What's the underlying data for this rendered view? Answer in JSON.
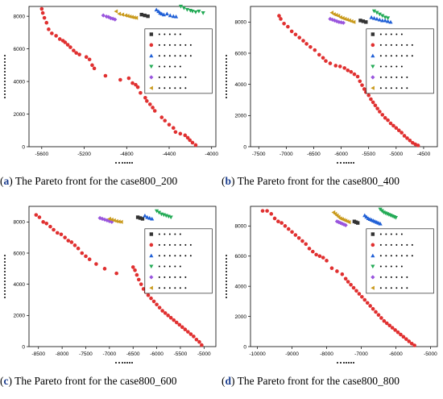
{
  "chart_data": [
    {
      "type": "scatter",
      "panel_label": "a",
      "caption": "The Pareto front for the case800_200",
      "xlim": [
        -5720,
        -3960
      ],
      "xticks": [
        -5600,
        -5200,
        -4800,
        -4400,
        -4000
      ],
      "ylim": [
        0,
        8600
      ],
      "yticks": [
        0,
        2000,
        4000,
        6000,
        8000
      ],
      "legend": "right",
      "series": [
        {
          "marker": "circle",
          "color": "#e03030",
          "x": [
            -5600,
            -5590,
            -5575,
            -5555,
            -5535,
            -5505,
            -5465,
            -5430,
            -5400,
            -5380,
            -5355,
            -5330,
            -5300,
            -5275,
            -5245,
            -5180,
            -5150,
            -5125,
            -5105,
            -5000,
            -4860,
            -4780,
            -4745,
            -4715,
            -4695,
            -4670,
            -4625,
            -4610,
            -4580,
            -4555,
            -4535,
            -4470,
            -4440,
            -4400,
            -4360,
            -4340,
            -4295,
            -4250,
            -4225,
            -4205,
            -4180,
            -4150
          ],
          "y": [
            8450,
            8200,
            7900,
            7600,
            7200,
            6950,
            6800,
            6600,
            6500,
            6400,
            6250,
            6100,
            5900,
            5750,
            5650,
            5500,
            5350,
            5000,
            4800,
            4350,
            4100,
            4200,
            3900,
            3800,
            3650,
            3300,
            3000,
            2800,
            2600,
            2400,
            2200,
            1800,
            1600,
            1350,
            1150,
            900,
            800,
            700,
            550,
            400,
            250,
            100
          ]
        },
        {
          "marker": "square",
          "color": "#333333",
          "x": [
            -4660,
            -4630,
            -4600
          ],
          "y": [
            8100,
            8050,
            8000
          ]
        },
        {
          "marker": "triangle-up",
          "color": "#1f5fd6",
          "x": [
            -4520,
            -4500,
            -4485,
            -4470,
            -4450,
            -4420,
            -4390,
            -4360,
            -4335
          ],
          "y": [
            8400,
            8300,
            8200,
            8150,
            8100,
            8150,
            8050,
            8000,
            7980
          ]
        },
        {
          "marker": "triangle-down",
          "color": "#22aa55",
          "x": [
            -4290,
            -4260,
            -4230,
            -4200,
            -4180,
            -4150,
            -4120,
            -4080
          ],
          "y": [
            8600,
            8500,
            8400,
            8350,
            8300,
            8250,
            8300,
            8200
          ]
        },
        {
          "marker": "diamond",
          "color": "#9955dd",
          "x": [
            -5020,
            -4990,
            -4970,
            -4950,
            -4930,
            -4910
          ],
          "y": [
            8050,
            7980,
            7950,
            7880,
            7850,
            7800
          ]
        },
        {
          "marker": "triangle-left",
          "color": "#c99a1c",
          "x": [
            -4900,
            -4870,
            -4840,
            -4810,
            -4790,
            -4770,
            -4750,
            -4730,
            -4710
          ],
          "y": [
            8300,
            8150,
            8100,
            8050,
            8020,
            7980,
            7950,
            7920,
            7900
          ]
        }
      ]
    },
    {
      "type": "scatter",
      "panel_label": "b",
      "caption": "The Pareto front for the case800_400",
      "xlim": [
        -7650,
        -4250
      ],
      "xticks": [
        -7500,
        -7000,
        -6500,
        -6000,
        -5500,
        -5000,
        -4500
      ],
      "ylim": [
        0,
        9000
      ],
      "yticks": [
        0,
        2000,
        4000,
        6000,
        8000
      ],
      "legend": "right",
      "series": [
        {
          "marker": "circle",
          "color": "#e03030",
          "x": [
            -7130,
            -7100,
            -7040,
            -6970,
            -6900,
            -6830,
            -6760,
            -6690,
            -6630,
            -6560,
            -6480,
            -6400,
            -6330,
            -6280,
            -6200,
            -6100,
            -6020,
            -5940,
            -5880,
            -5820,
            -5760,
            -5700,
            -5660,
            -5620,
            -5580,
            -5550,
            -5500,
            -5460,
            -5420,
            -5380,
            -5340,
            -5300,
            -5250,
            -5200,
            -5150,
            -5100,
            -5050,
            -5000,
            -4950,
            -4900,
            -4850,
            -4800,
            -4750,
            -4700,
            -4650,
            -4600
          ],
          "y": [
            8400,
            8200,
            7900,
            7700,
            7400,
            7200,
            7000,
            6800,
            6600,
            6400,
            6200,
            5900,
            5700,
            5500,
            5350,
            5200,
            5150,
            5050,
            4900,
            4800,
            4650,
            4500,
            4200,
            3950,
            3700,
            3500,
            3300,
            3050,
            2850,
            2650,
            2450,
            2250,
            2050,
            1850,
            1700,
            1500,
            1350,
            1200,
            1050,
            900,
            700,
            550,
            400,
            250,
            150,
            80
          ]
        },
        {
          "marker": "square",
          "color": "#333333",
          "x": [
            -5650,
            -5600,
            -5550
          ],
          "y": [
            8100,
            8050,
            8000
          ]
        },
        {
          "marker": "triangle-up",
          "color": "#1f5fd6",
          "x": [
            -5450,
            -5400,
            -5350,
            -5300,
            -5250,
            -5200,
            -5150,
            -5100
          ],
          "y": [
            8300,
            8250,
            8200,
            8150,
            8100,
            8100,
            8050,
            8000
          ]
        },
        {
          "marker": "triangle-down",
          "color": "#22aa55",
          "x": [
            -5400,
            -5350,
            -5300,
            -5250,
            -5200,
            -5150
          ],
          "y": [
            8700,
            8600,
            8500,
            8400,
            8300,
            8250
          ]
        },
        {
          "marker": "diamond",
          "color": "#9955dd",
          "x": [
            -6200,
            -6160,
            -6120,
            -6080,
            -6040,
            -6000,
            -5960
          ],
          "y": [
            8200,
            8150,
            8100,
            8050,
            8000,
            7980,
            7950
          ]
        },
        {
          "marker": "triangle-left",
          "color": "#c99a1c",
          "x": [
            -6170,
            -6130,
            -6090,
            -6050,
            -6010,
            -5970,
            -5930,
            -5890,
            -5850,
            -5810,
            -5770
          ],
          "y": [
            8600,
            8500,
            8450,
            8400,
            8300,
            8250,
            8200,
            8150,
            8100,
            8050,
            8000
          ]
        }
      ]
    },
    {
      "type": "scatter",
      "panel_label": "c",
      "caption": "The Pareto front for the case800_600",
      "xlim": [
        -8700,
        -4750
      ],
      "xticks": [
        -8500,
        -8000,
        -7500,
        -7000,
        -6500,
        -6000,
        -5500,
        -5000
      ],
      "ylim": [
        0,
        9000
      ],
      "yticks": [
        0,
        2000,
        4000,
        6000,
        8000
      ],
      "legend": "right",
      "series": [
        {
          "marker": "circle",
          "color": "#e03030",
          "x": [
            -8550,
            -8480,
            -8400,
            -8330,
            -8250,
            -8180,
            -8100,
            -8020,
            -7940,
            -7870,
            -7800,
            -7730,
            -7660,
            -7580,
            -7500,
            -7420,
            -7280,
            -7100,
            -6850,
            -6500,
            -6460,
            -6420,
            -6380,
            -6330,
            -6280,
            -6230,
            -6180,
            -6120,
            -6060,
            -6000,
            -5940,
            -5880,
            -5820,
            -5760,
            -5700,
            -5640,
            -5580,
            -5520,
            -5460,
            -5400,
            -5340,
            -5280,
            -5220,
            -5160,
            -5100,
            -5050
          ],
          "y": [
            8450,
            8300,
            8000,
            7900,
            7700,
            7500,
            7300,
            7200,
            7000,
            6800,
            6700,
            6500,
            6300,
            6000,
            5800,
            5600,
            5300,
            5000,
            4700,
            5100,
            4900,
            4600,
            4300,
            4000,
            3700,
            3500,
            3300,
            3100,
            2900,
            2700,
            2500,
            2300,
            2150,
            2000,
            1850,
            1700,
            1550,
            1400,
            1250,
            1100,
            950,
            800,
            650,
            450,
            300,
            100
          ]
        },
        {
          "marker": "square",
          "color": "#333333",
          "x": [
            -6400,
            -6350,
            -6300
          ],
          "y": [
            8300,
            8250,
            8200
          ]
        },
        {
          "marker": "triangle-up",
          "color": "#1f5fd6",
          "x": [
            -6250,
            -6200,
            -6150,
            -6100
          ],
          "y": [
            8400,
            8300,
            8250,
            8200
          ]
        },
        {
          "marker": "triangle-down",
          "color": "#22aa55",
          "x": [
            -6000,
            -5950,
            -5900,
            -5850,
            -5800,
            -5750,
            -5700
          ],
          "y": [
            8700,
            8600,
            8500,
            8450,
            8400,
            8350,
            8300
          ]
        },
        {
          "marker": "diamond",
          "color": "#9955dd",
          "x": [
            -7200,
            -7150,
            -7100,
            -7050,
            -7000,
            -6950
          ],
          "y": [
            8250,
            8200,
            8150,
            8100,
            8050,
            8000
          ]
        },
        {
          "marker": "triangle-left",
          "color": "#c99a1c",
          "x": [
            -7000,
            -6950,
            -6900,
            -6850,
            -6800,
            -6750
          ],
          "y": [
            8200,
            8150,
            8100,
            8050,
            8020,
            8000
          ]
        }
      ]
    },
    {
      "type": "scatter",
      "panel_label": "d",
      "caption": "The Pareto front for the case800_800",
      "xlim": [
        -10200,
        -4800
      ],
      "xticks": [
        -10000,
        -9000,
        -8000,
        -7000,
        -6000,
        -5000
      ],
      "ylim": [
        0,
        9300
      ],
      "yticks": [
        0,
        2000,
        4000,
        6000,
        8000
      ],
      "legend": "right",
      "series": [
        {
          "marker": "circle",
          "color": "#e03030",
          "x": [
            -9850,
            -9720,
            -9600,
            -9500,
            -9400,
            -9300,
            -9200,
            -9100,
            -9000,
            -8900,
            -8800,
            -8700,
            -8600,
            -8500,
            -8400,
            -8300,
            -8200,
            -8100,
            -8000,
            -7850,
            -7700,
            -7550,
            -7450,
            -7380,
            -7300,
            -7220,
            -7140,
            -7060,
            -6980,
            -6900,
            -6820,
            -6740,
            -6660,
            -6580,
            -6500,
            -6420,
            -6340,
            -6260,
            -6180,
            -6100,
            -6020,
            -5940,
            -5860,
            -5780,
            -5700,
            -5620,
            -5540,
            -5460
          ],
          "y": [
            9000,
            9000,
            8800,
            8500,
            8300,
            8200,
            8000,
            7800,
            7600,
            7400,
            7200,
            7000,
            6800,
            6500,
            6300,
            6100,
            6000,
            5900,
            5700,
            5200,
            5000,
            4800,
            4500,
            4300,
            4100,
            3900,
            3700,
            3500,
            3300,
            3100,
            2900,
            2700,
            2500,
            2300,
            2100,
            1900,
            1700,
            1550,
            1400,
            1250,
            1100,
            950,
            800,
            650,
            500,
            350,
            200,
            80
          ]
        },
        {
          "marker": "square",
          "color": "#333333",
          "x": [
            -7200,
            -7150,
            -7100
          ],
          "y": [
            8300,
            8250,
            8200
          ]
        },
        {
          "marker": "triangle-up",
          "color": "#1f5fd6",
          "x": [
            -6900,
            -6850,
            -6800,
            -6750,
            -6700,
            -6650,
            -6600,
            -6550,
            -6500,
            -6450
          ],
          "y": [
            8700,
            8600,
            8500,
            8450,
            8400,
            8350,
            8300,
            8250,
            8200,
            8150
          ]
        },
        {
          "marker": "triangle-down",
          "color": "#22aa55",
          "x": [
            -6450,
            -6400,
            -6350,
            -6300,
            -6250,
            -6200,
            -6150,
            -6100,
            -6050,
            -6000
          ],
          "y": [
            9100,
            9000,
            8900,
            8850,
            8800,
            8750,
            8700,
            8650,
            8600,
            8550
          ]
        },
        {
          "marker": "diamond",
          "color": "#9955dd",
          "x": [
            -7700,
            -7650,
            -7600,
            -7550,
            -7500,
            -7450
          ],
          "y": [
            8300,
            8250,
            8200,
            8150,
            8100,
            8050
          ]
        },
        {
          "marker": "triangle-left",
          "color": "#c99a1c",
          "x": [
            -7800,
            -7750,
            -7700,
            -7650,
            -7600,
            -7550,
            -7500,
            -7450,
            -7400,
            -7350
          ],
          "y": [
            8900,
            8800,
            8700,
            8600,
            8500,
            8450,
            8400,
            8350,
            8300,
            8250
          ]
        }
      ]
    }
  ]
}
